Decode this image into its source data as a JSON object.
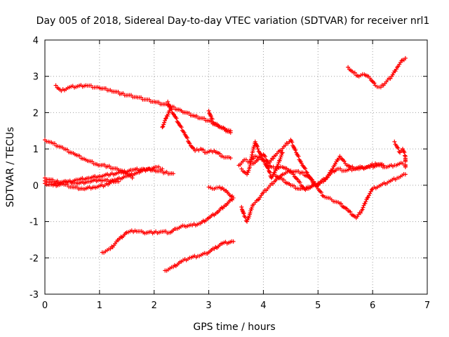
{
  "chart_data": {
    "type": "scatter",
    "title": "Day 005 of 2018, Sidereal Day-to-day VTEC variation (SDTVAR) for receiver nrl1",
    "xlabel": "GPS time / hours",
    "ylabel": "SDTVAR / TECUs",
    "xlim": [
      0,
      7
    ],
    "ylim": [
      -3,
      4
    ],
    "x_ticks": [
      "0",
      "1",
      "2",
      "3",
      "4",
      "5",
      "6",
      "7"
    ],
    "y_ticks": [
      "-3",
      "-2",
      "-1",
      "0",
      "1",
      "2",
      "3",
      "4"
    ],
    "grid": true,
    "legend": "none",
    "marker": "plus",
    "color": "#ff0000",
    "series": [
      {
        "name": "track-01",
        "points": [
          [
            0.2,
            2.75
          ],
          [
            0.3,
            2.6
          ],
          [
            0.45,
            2.7
          ],
          [
            0.75,
            2.75
          ],
          [
            1.0,
            2.68
          ],
          [
            1.2,
            2.62
          ],
          [
            1.4,
            2.52
          ],
          [
            1.7,
            2.42
          ],
          [
            2.0,
            2.3
          ],
          [
            2.25,
            2.2
          ],
          [
            2.5,
            2.05
          ],
          [
            2.75,
            1.9
          ],
          [
            3.0,
            1.78
          ],
          [
            3.2,
            1.6
          ],
          [
            3.4,
            1.45
          ]
        ]
      },
      {
        "name": "track-02",
        "points": [
          [
            2.25,
            2.3
          ],
          [
            2.3,
            2.1
          ],
          [
            2.38,
            1.9
          ],
          [
            2.45,
            1.7
          ],
          [
            2.55,
            1.45
          ],
          [
            2.65,
            1.15
          ],
          [
            2.75,
            0.95
          ],
          [
            2.85,
            1.0
          ],
          [
            2.95,
            0.9
          ],
          [
            3.1,
            0.95
          ],
          [
            3.25,
            0.8
          ],
          [
            3.4,
            0.75
          ]
        ]
      },
      {
        "name": "track-03",
        "points": [
          [
            2.15,
            1.6
          ],
          [
            2.22,
            1.85
          ],
          [
            2.28,
            2.05
          ]
        ]
      },
      {
        "name": "track-04",
        "points": [
          [
            3.0,
            2.05
          ],
          [
            3.05,
            1.85
          ],
          [
            3.1,
            1.7
          ],
          [
            3.2,
            1.62
          ],
          [
            3.3,
            1.55
          ],
          [
            3.4,
            1.5
          ]
        ]
      },
      {
        "name": "track-05",
        "points": [
          [
            0.0,
            1.25
          ],
          [
            0.15,
            1.15
          ],
          [
            0.35,
            1.0
          ],
          [
            0.55,
            0.85
          ],
          [
            0.75,
            0.7
          ],
          [
            0.95,
            0.58
          ],
          [
            1.15,
            0.52
          ],
          [
            1.35,
            0.42
          ],
          [
            1.5,
            0.32
          ],
          [
            1.6,
            0.2
          ]
        ]
      },
      {
        "name": "track-06",
        "points": [
          [
            0.0,
            0.2
          ],
          [
            0.2,
            0.1
          ],
          [
            0.4,
            0.08
          ],
          [
            0.6,
            0.15
          ],
          [
            0.8,
            0.2
          ],
          [
            1.0,
            0.25
          ],
          [
            1.2,
            0.3
          ],
          [
            1.4,
            0.35
          ],
          [
            1.6,
            0.42
          ],
          [
            1.8,
            0.45
          ],
          [
            2.0,
            0.42
          ],
          [
            2.2,
            0.35
          ],
          [
            2.35,
            0.32
          ]
        ]
      },
      {
        "name": "track-07",
        "points": [
          [
            0.0,
            0.05
          ],
          [
            0.15,
            0.0
          ],
          [
            0.35,
            0.02
          ],
          [
            0.5,
            -0.05
          ],
          [
            0.7,
            -0.1
          ],
          [
            0.9,
            -0.05
          ],
          [
            1.1,
            0.0
          ],
          [
            1.3,
            0.15
          ],
          [
            1.5,
            0.25
          ],
          [
            1.7,
            0.35
          ],
          [
            1.9,
            0.45
          ],
          [
            2.05,
            0.5
          ],
          [
            2.15,
            0.45
          ]
        ]
      },
      {
        "name": "track-08",
        "points": [
          [
            0.0,
            0.12
          ],
          [
            0.2,
            0.05
          ],
          [
            0.4,
            0.1
          ],
          [
            0.6,
            0.05
          ],
          [
            0.8,
            0.1
          ],
          [
            1.0,
            0.15
          ],
          [
            1.2,
            0.12
          ],
          [
            1.35,
            0.1
          ]
        ]
      },
      {
        "name": "track-09",
        "points": [
          [
            1.05,
            -1.85
          ],
          [
            1.2,
            -1.75
          ],
          [
            1.35,
            -1.5
          ],
          [
            1.5,
            -1.3
          ],
          [
            1.65,
            -1.25
          ],
          [
            1.8,
            -1.3
          ],
          [
            2.0,
            -1.3
          ],
          [
            2.15,
            -1.28
          ],
          [
            2.3,
            -1.3
          ],
          [
            2.4,
            -1.2
          ],
          [
            2.55,
            -1.12
          ],
          [
            2.7,
            -1.1
          ],
          [
            2.85,
            -1.05
          ],
          [
            3.0,
            -0.9
          ],
          [
            3.15,
            -0.75
          ],
          [
            3.3,
            -0.55
          ],
          [
            3.45,
            -0.35
          ],
          [
            3.3,
            -0.15
          ],
          [
            3.2,
            -0.05
          ],
          [
            3.1,
            -0.1
          ],
          [
            3.0,
            -0.05
          ]
        ]
      },
      {
        "name": "track-10",
        "points": [
          [
            2.2,
            -2.35
          ],
          [
            2.35,
            -2.25
          ],
          [
            2.5,
            -2.1
          ],
          [
            2.65,
            -2.0
          ],
          [
            2.8,
            -1.95
          ],
          [
            2.95,
            -1.88
          ],
          [
            3.1,
            -1.75
          ],
          [
            3.25,
            -1.6
          ],
          [
            3.45,
            -1.55
          ]
        ]
      },
      {
        "name": "track-11",
        "points": [
          [
            3.55,
            0.55
          ],
          [
            3.65,
            0.7
          ],
          [
            3.75,
            0.65
          ],
          [
            3.85,
            0.8
          ],
          [
            3.95,
            0.75
          ],
          [
            4.05,
            0.6
          ],
          [
            4.15,
            0.5
          ],
          [
            4.25,
            0.45
          ],
          [
            4.35,
            0.5
          ],
          [
            4.45,
            0.42
          ],
          [
            4.55,
            0.3
          ],
          [
            4.65,
            0.1
          ],
          [
            4.75,
            -0.1
          ],
          [
            4.85,
            -0.05
          ],
          [
            5.0,
            0.05
          ],
          [
            5.15,
            0.2
          ],
          [
            5.25,
            0.35
          ],
          [
            5.35,
            0.45
          ],
          [
            5.5,
            0.4
          ],
          [
            5.65,
            0.45
          ],
          [
            5.8,
            0.5
          ],
          [
            5.95,
            0.5
          ],
          [
            6.1,
            0.55
          ],
          [
            6.25,
            0.5
          ],
          [
            6.4,
            0.55
          ],
          [
            6.55,
            0.6
          ]
        ]
      },
      {
        "name": "track-12",
        "points": [
          [
            3.6,
            -0.6
          ],
          [
            3.65,
            -0.85
          ],
          [
            3.7,
            -1.0
          ],
          [
            3.75,
            -0.8
          ],
          [
            3.8,
            -0.55
          ],
          [
            3.9,
            -0.4
          ],
          [
            4.0,
            -0.2
          ],
          [
            4.1,
            -0.05
          ],
          [
            4.2,
            0.1
          ],
          [
            4.35,
            0.3
          ],
          [
            4.5,
            0.4
          ],
          [
            4.7,
            0.35
          ],
          [
            4.85,
            0.2
          ],
          [
            5.0,
            -0.1
          ],
          [
            5.1,
            -0.3
          ],
          [
            5.25,
            -0.4
          ],
          [
            5.4,
            -0.5
          ],
          [
            5.55,
            -0.7
          ],
          [
            5.7,
            -0.9
          ],
          [
            5.8,
            -0.7
          ],
          [
            5.9,
            -0.35
          ],
          [
            6.0,
            -0.1
          ],
          [
            6.15,
            0.0
          ],
          [
            6.3,
            0.1
          ],
          [
            6.45,
            0.2
          ],
          [
            6.6,
            0.3
          ]
        ]
      },
      {
        "name": "track-13",
        "points": [
          [
            3.8,
            0.6
          ],
          [
            3.9,
            0.7
          ],
          [
            4.0,
            0.85
          ],
          [
            4.1,
            0.6
          ],
          [
            4.2,
            0.8
          ],
          [
            4.3,
            0.95
          ],
          [
            4.4,
            1.1
          ],
          [
            4.5,
            1.25
          ],
          [
            4.6,
            0.9
          ],
          [
            4.7,
            0.6
          ],
          [
            4.8,
            0.35
          ],
          [
            4.9,
            0.1
          ],
          [
            5.0,
            0.0
          ]
        ]
      },
      {
        "name": "track-14",
        "points": [
          [
            3.6,
            0.45
          ],
          [
            3.7,
            0.3
          ],
          [
            3.75,
            0.5
          ],
          [
            3.8,
            0.9
          ],
          [
            3.85,
            1.2
          ],
          [
            3.9,
            1.0
          ],
          [
            4.0,
            0.7
          ],
          [
            4.1,
            0.4
          ],
          [
            4.15,
            0.2
          ],
          [
            4.25,
            0.5
          ],
          [
            4.35,
            0.9
          ]
        ]
      },
      {
        "name": "track-15",
        "points": [
          [
            4.2,
            0.3
          ],
          [
            4.35,
            0.15
          ],
          [
            4.5,
            0.0
          ],
          [
            4.65,
            -0.1
          ],
          [
            4.8,
            -0.1
          ],
          [
            4.95,
            0.0
          ],
          [
            5.1,
            0.1
          ],
          [
            5.2,
            0.3
          ],
          [
            5.3,
            0.55
          ],
          [
            5.4,
            0.8
          ],
          [
            5.5,
            0.6
          ],
          [
            5.6,
            0.5
          ],
          [
            5.75,
            0.45
          ],
          [
            5.9,
            0.5
          ],
          [
            6.05,
            0.6
          ],
          [
            6.2,
            0.55
          ]
        ]
      },
      {
        "name": "track-16",
        "points": [
          [
            5.55,
            3.25
          ],
          [
            5.65,
            3.1
          ],
          [
            5.75,
            3.0
          ],
          [
            5.85,
            3.05
          ],
          [
            5.95,
            2.95
          ],
          [
            6.05,
            2.75
          ],
          [
            6.15,
            2.7
          ],
          [
            6.25,
            2.85
          ],
          [
            6.35,
            3.0
          ],
          [
            6.45,
            3.25
          ],
          [
            6.55,
            3.45
          ],
          [
            6.6,
            3.5
          ]
        ]
      },
      {
        "name": "track-17",
        "points": [
          [
            6.4,
            1.2
          ],
          [
            6.45,
            1.05
          ],
          [
            6.5,
            0.9
          ],
          [
            6.55,
            1.0
          ],
          [
            6.6,
            0.8
          ],
          [
            6.6,
            0.5
          ]
        ]
      }
    ]
  }
}
